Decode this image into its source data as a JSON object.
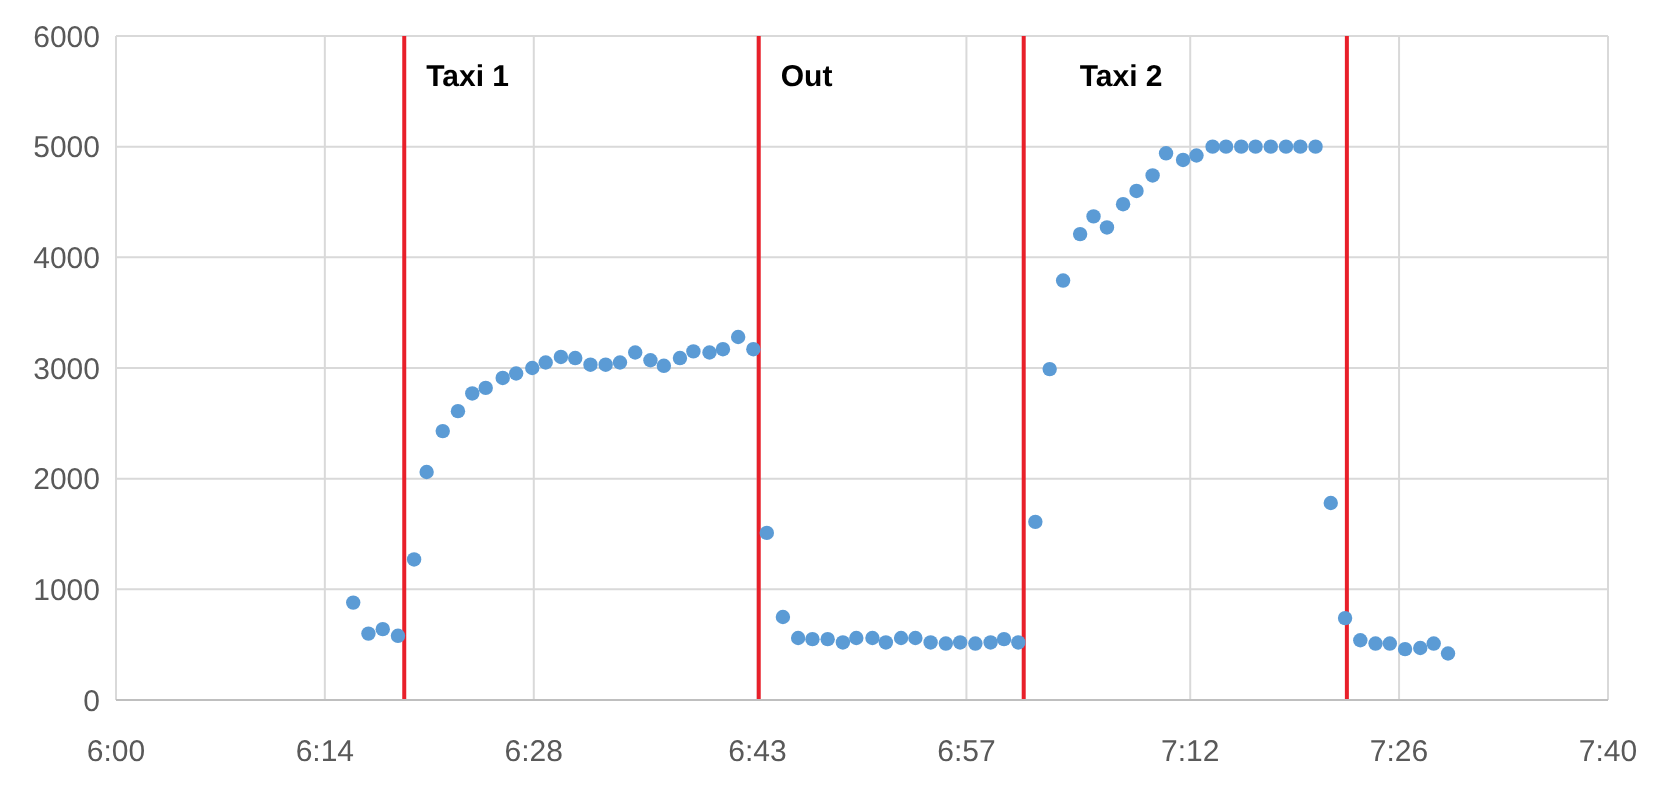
{
  "chart_data": {
    "type": "scatter",
    "marker": "circle",
    "grid": true,
    "xlim": [
      6,
      7.6667
    ],
    "xticks": [
      {
        "value": 6,
        "label": "6:00"
      },
      {
        "value": 6.2333,
        "label": "6:14"
      },
      {
        "value": 6.4667,
        "label": "6:28"
      },
      {
        "value": 6.7167,
        "label": "6:43"
      },
      {
        "value": 6.95,
        "label": "6:57"
      },
      {
        "value": 7.2,
        "label": "7:12"
      },
      {
        "value": 7.4333,
        "label": "7:26"
      },
      {
        "value": 7.6667,
        "label": "7:40"
      }
    ],
    "ylim": [
      0,
      6000
    ],
    "yticks": [
      0,
      1000,
      2000,
      3000,
      4000,
      5000,
      6000
    ],
    "series": [
      {
        "color": "#5b9bd5",
        "x": [
          6.265,
          6.282,
          6.298,
          6.315,
          6.333,
          6.347,
          6.365,
          6.382,
          6.398,
          6.413,
          6.432,
          6.447,
          6.465,
          6.48,
          6.497,
          6.513,
          6.53,
          6.547,
          6.563,
          6.58,
          6.597,
          6.612,
          6.63,
          6.645,
          6.663,
          6.678,
          6.695,
          6.712,
          6.727,
          6.745,
          6.762,
          6.778,
          6.795,
          6.812,
          6.827,
          6.845,
          6.86,
          6.877,
          6.893,
          6.91,
          6.927,
          6.943,
          6.96,
          6.977,
          6.992,
          7.008,
          7.027,
          7.043,
          7.058,
          7.077,
          7.092,
          7.107,
          7.125,
          7.14,
          7.158,
          7.173,
          7.192,
          7.207,
          7.225,
          7.24,
          7.257,
          7.273,
          7.29,
          7.307,
          7.323,
          7.34,
          7.357,
          7.373,
          7.39,
          7.407,
          7.423,
          7.44,
          7.457,
          7.472,
          7.488
        ],
        "values": [
          880,
          600,
          640,
          580,
          1270,
          2060,
          2430,
          2610,
          2770,
          2820,
          2910,
          2950,
          3000,
          3050,
          3100,
          3090,
          3030,
          3030,
          3050,
          3140,
          3070,
          3020,
          3090,
          3150,
          3140,
          3170,
          3280,
          3170,
          1510,
          750,
          560,
          550,
          550,
          520,
          560,
          560,
          520,
          560,
          560,
          520,
          510,
          520,
          510,
          520,
          550,
          520,
          1610,
          2990,
          3790,
          4210,
          4370,
          4270,
          4480,
          4600,
          4740,
          4940,
          4880,
          4920,
          5000,
          5000,
          5000,
          5000,
          5000,
          5000,
          5000,
          5000,
          1780,
          740,
          540,
          510,
          510,
          460,
          470,
          510,
          420
        ]
      }
    ],
    "ref_lines": [
      {
        "axis": "x",
        "value": 6.322,
        "label": "Taxi 1",
        "color": "#e8202a"
      },
      {
        "axis": "x",
        "value": 6.718,
        "label": "Out",
        "color": "#e8202a"
      },
      {
        "axis": "x",
        "value": 7.014,
        "label": "Taxi 2",
        "color": "#e8202a"
      },
      {
        "axis": "x",
        "value": 7.375,
        "color": "#e8202a"
      }
    ]
  }
}
